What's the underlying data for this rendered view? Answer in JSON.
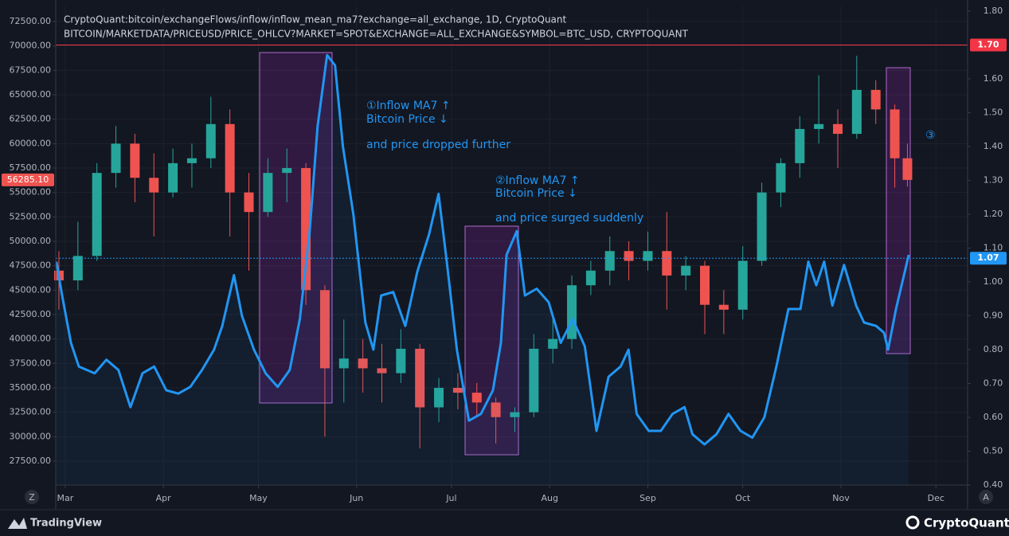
{
  "chart_data": {
    "type": "candlestick-line",
    "title": "CryptoQuant:bitcoin/exchangeFlows/inflow/inflow_mean_ma7?exchange=all_exchange, 1D, CryptoQuant",
    "subtitle": "BITCOIN/MARKETDATA/PRICEUSD/PRICE_OHLCV?MARKET=SPOT&EXCHANGE=ALL_EXCHANGE&SYMBOL=BTC_USD, CRYPTOQUANT",
    "xlim": [
      57,
      345
    ],
    "xticks": [
      {
        "value": 60,
        "label": "Mar"
      },
      {
        "value": 91,
        "label": "Apr"
      },
      {
        "value": 121,
        "label": "May"
      },
      {
        "value": 152,
        "label": "Jun"
      },
      {
        "value": 182,
        "label": "Jul"
      },
      {
        "value": 213,
        "label": "Aug"
      },
      {
        "value": 244,
        "label": "Sep"
      },
      {
        "value": 274,
        "label": "Oct"
      },
      {
        "value": 305,
        "label": "Nov"
      },
      {
        "value": 335,
        "label": "Dec"
      }
    ],
    "ylim": [
      25050,
      74050
    ],
    "yticks": [
      {
        "value": 27500,
        "label": "27500.00"
      },
      {
        "value": 30000,
        "label": "30000.00"
      },
      {
        "value": 32500,
        "label": "32500.00"
      },
      {
        "value": 35000,
        "label": "35000.00"
      },
      {
        "value": 37500,
        "label": "37500.00"
      },
      {
        "value": 40000,
        "label": "40000.00"
      },
      {
        "value": 42500,
        "label": "42500.00"
      },
      {
        "value": 45000,
        "label": "45000.00"
      },
      {
        "value": 47500,
        "label": "47500.00"
      },
      {
        "value": 50000,
        "label": "50000.00"
      },
      {
        "value": 52500,
        "label": "52500.00"
      },
      {
        "value": 55000,
        "label": "55000.00"
      },
      {
        "value": 57500,
        "label": "57500.00"
      },
      {
        "value": 60000,
        "label": "60000.00"
      },
      {
        "value": 62500,
        "label": "62500.00"
      },
      {
        "value": 65000,
        "label": "65000.00"
      },
      {
        "value": 67500,
        "label": "67500.00"
      },
      {
        "value": 70000,
        "label": "70000.00"
      },
      {
        "value": 72500,
        "label": "72500.00"
      }
    ],
    "y2lim": [
      0.4,
      1.814
    ],
    "y2ticks": [
      {
        "value": 0.4,
        "label": "0.40"
      },
      {
        "value": 0.5,
        "label": "0.50"
      },
      {
        "value": 0.6,
        "label": "0.60"
      },
      {
        "value": 0.7,
        "label": "0.70"
      },
      {
        "value": 0.8,
        "label": "0.80"
      },
      {
        "value": 0.9,
        "label": "0.90"
      },
      {
        "value": 1.0,
        "label": "1.00"
      },
      {
        "value": 1.1,
        "label": "1.10"
      },
      {
        "value": 1.2,
        "label": "1.20"
      },
      {
        "value": 1.3,
        "label": "1.30"
      },
      {
        "value": 1.4,
        "label": "1.40"
      },
      {
        "value": 1.5,
        "label": "1.50"
      },
      {
        "value": 1.6,
        "label": "1.60"
      },
      {
        "value": 1.8,
        "label": "1.80"
      }
    ],
    "grid": true,
    "up_color": "#26a69a",
    "down_color": "#ef5350",
    "candles": {
      "x": [
        58,
        64,
        70,
        76,
        82,
        88,
        94,
        100,
        106,
        112,
        118,
        124,
        130,
        136,
        142,
        148,
        154,
        160,
        166,
        172,
        178,
        184,
        190,
        196,
        202,
        208,
        214,
        220,
        226,
        232,
        238,
        244,
        250,
        256,
        262,
        268,
        274,
        280,
        286,
        292,
        298,
        304,
        310,
        316,
        322,
        326
      ],
      "open": [
        47000,
        46000,
        48500,
        57000,
        60000,
        56500,
        55000,
        58000,
        58500,
        62000,
        55000,
        53000,
        57000,
        57500,
        45000,
        37000,
        38000,
        37000,
        36500,
        39000,
        33000,
        35000,
        34500,
        33500,
        32000,
        32500,
        39000,
        40000,
        45500,
        47000,
        49000,
        48000,
        49000,
        46500,
        47500,
        43500,
        43000,
        48000,
        55000,
        58000,
        61500,
        62000,
        61000,
        65500,
        63500,
        58500
      ],
      "high": [
        49000,
        52000,
        58000,
        61800,
        61000,
        59000,
        59500,
        60000,
        64800,
        63500,
        57000,
        58500,
        59500,
        58000,
        45500,
        42000,
        40000,
        39500,
        41000,
        39500,
        36000,
        36500,
        35500,
        34000,
        33000,
        40500,
        42500,
        46500,
        48000,
        50500,
        50000,
        51000,
        53000,
        48500,
        48000,
        45000,
        49500,
        56000,
        58500,
        62800,
        67000,
        63500,
        69000,
        66500,
        64000,
        60000
      ],
      "low": [
        43000,
        45000,
        48000,
        55500,
        54000,
        50500,
        54500,
        55500,
        57500,
        50500,
        47000,
        52500,
        54000,
        43500,
        30000,
        33500,
        34500,
        33500,
        35500,
        28800,
        31500,
        32800,
        32000,
        29300,
        30500,
        32000,
        37500,
        39000,
        44500,
        45500,
        46000,
        47000,
        43000,
        45000,
        40500,
        40500,
        42000,
        47500,
        53500,
        56500,
        60000,
        57500,
        60500,
        62000,
        55500,
        55600
      ],
      "close": [
        46000,
        48500,
        57000,
        60000,
        56500,
        55000,
        58000,
        58500,
        62000,
        55000,
        53000,
        57000,
        57500,
        45000,
        37000,
        38000,
        37000,
        36500,
        39000,
        33000,
        35000,
        34500,
        33500,
        32000,
        32500,
        39000,
        40000,
        45500,
        47000,
        49000,
        48000,
        49000,
        46500,
        47500,
        43500,
        43000,
        48000,
        55000,
        58000,
        61500,
        62000,
        61000,
        65500,
        63500,
        58500,
        56285.1
      ]
    },
    "last_price": {
      "value": 56285.1,
      "label": "56285.10"
    },
    "series": [
      {
        "name": "inflow_mean_ma7",
        "color": "#2196f3",
        "axis": "y2",
        "x": [
          57.2,
          59,
          61.8,
          64.3,
          66.8,
          69.3,
          73,
          76.8,
          80.6,
          84.4,
          88.1,
          91.9,
          95.7,
          99.5,
          103.2,
          107,
          109.6,
          113.3,
          115.8,
          119.6,
          123.3,
          127.1,
          130.9,
          134.1,
          137.2,
          139.7,
          142.7,
          145.2,
          147.7,
          151,
          154.8,
          157.3,
          159.8,
          163.6,
          167.4,
          171.2,
          174.9,
          177.9,
          180.5,
          183.7,
          187.5,
          191.3,
          195.1,
          197.6,
          199.4,
          202.6,
          205.2,
          208.9,
          212.7,
          216.5,
          220.3,
          224.1,
          227.8,
          231.6,
          235.4,
          237.9,
          240.5,
          244.3,
          248.1,
          251.8,
          255.6,
          258.1,
          261.9,
          265.7,
          269.5,
          273.3,
          277,
          280.8,
          284.6,
          288.4,
          292.2,
          294.7,
          297.2,
          299.7,
          302.3,
          306,
          309.8,
          312.3,
          316.1,
          318.6,
          319.9,
          322.4,
          324.9,
          326.4
        ],
        "values": [
          1.06,
          0.96,
          0.82,
          0.75,
          0.74,
          0.73,
          0.77,
          0.74,
          0.63,
          0.73,
          0.75,
          0.68,
          0.67,
          0.69,
          0.74,
          0.8,
          0.87,
          1.02,
          0.9,
          0.8,
          0.73,
          0.69,
          0.74,
          0.89,
          1.15,
          1.46,
          1.67,
          1.64,
          1.4,
          1.2,
          0.88,
          0.8,
          0.96,
          0.97,
          0.87,
          1.03,
          1.14,
          1.26,
          1.06,
          0.8,
          0.59,
          0.61,
          0.68,
          0.82,
          1.08,
          1.15,
          0.96,
          0.98,
          0.94,
          0.82,
          0.89,
          0.81,
          0.56,
          0.72,
          0.75,
          0.8,
          0.61,
          0.56,
          0.56,
          0.61,
          0.63,
          0.55,
          0.52,
          0.55,
          0.61,
          0.56,
          0.54,
          0.6,
          0.75,
          0.92,
          0.92,
          1.06,
          0.99,
          1.06,
          0.93,
          1.05,
          0.93,
          0.88,
          0.87,
          0.85,
          0.8,
          0.92,
          1.02,
          1.08
        ]
      }
    ],
    "marker_lines": [
      {
        "value": 1.7,
        "label": "1.70",
        "color": "#f23645"
      },
      {
        "value": 1.07,
        "label": "1.07",
        "color": "#2196f3"
      }
    ],
    "annotations": [
      {
        "lines": [
          "①Inflow MA7 ↑",
          "Bitcoin Price ↓",
          "and price dropped further"
        ]
      },
      {
        "lines": [
          "②Inflow MA7 ↑",
          "Bitcoin Price ↓",
          "and price surged suddenly"
        ]
      },
      {
        "lines": [
          "③"
        ]
      }
    ]
  },
  "footer": {
    "left": "TradingView",
    "right": "CryptoQuant",
    "left_button": "Z",
    "right_button": "A"
  }
}
